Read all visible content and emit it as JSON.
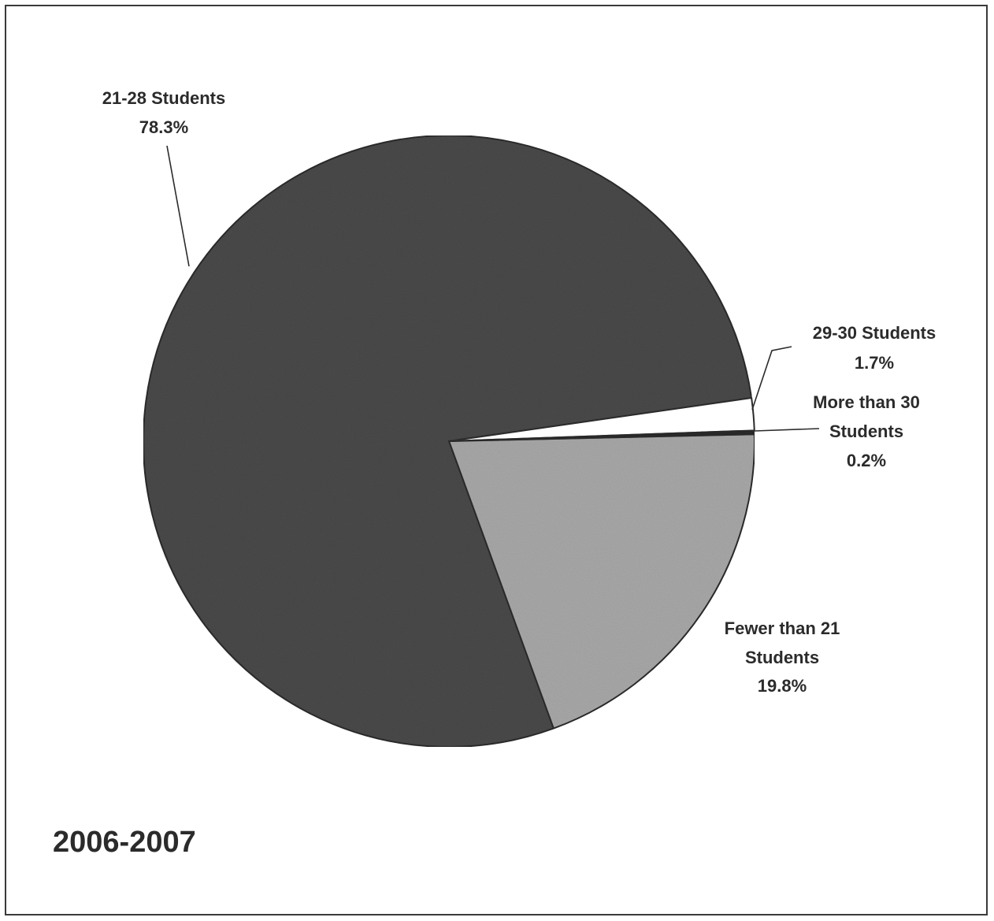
{
  "chart_data": {
    "type": "pie",
    "period": "2006-2007",
    "slices": [
      {
        "label_lines": [
          "21-28 Students"
        ],
        "value_label": "78.3%",
        "value": 78.3,
        "color": "#4a4a4a"
      },
      {
        "label_lines": [
          "29-30 Students"
        ],
        "value_label": "1.7%",
        "value": 1.7,
        "color": "#ffffff"
      },
      {
        "label_lines": [
          "More than 30",
          "Students"
        ],
        "value_label": "0.2%",
        "value": 0.2,
        "color": "#2b2b2b"
      },
      {
        "label_lines": [
          "Fewer than 21",
          "Students"
        ],
        "value_label": "19.8%",
        "value": 19.8,
        "color": "#a9a9a9"
      }
    ]
  }
}
